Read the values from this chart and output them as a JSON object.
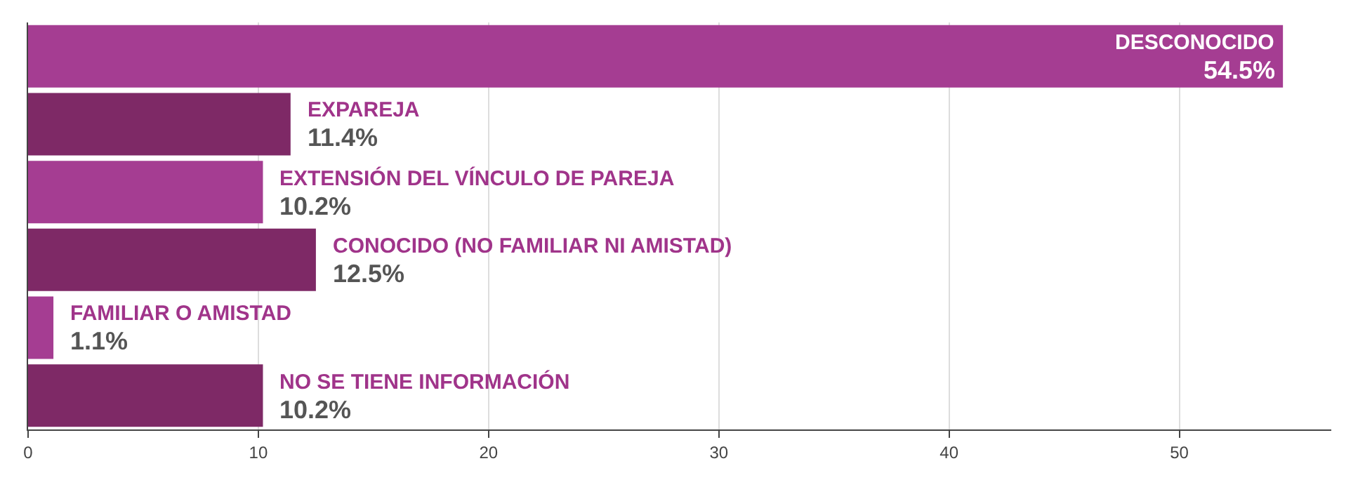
{
  "chart_data": {
    "type": "bar",
    "orientation": "horizontal",
    "categories": [
      "DESCONOCIDO",
      "EXPAREJA",
      "EXTENSIÓN DEL VÍNCULO DE PAREJA",
      "CONOCIDO (NO FAMILIAR NI AMISTAD)",
      "FAMILIAR O AMISTAD",
      "NO SE TIENE INFORMACIÓN"
    ],
    "values": [
      54.5,
      11.4,
      10.2,
      12.5,
      1.1,
      10.2
    ],
    "value_labels": [
      "54.5%",
      "11.4%",
      "10.2%",
      "12.5%",
      "1.1%",
      "10.2%"
    ],
    "colors": [
      "#a53d92",
      "#7e2966",
      "#a53d92",
      "#7e2966",
      "#a53d92",
      "#7e2966"
    ],
    "xlim": [
      0,
      56.6
    ],
    "xticks": [
      0,
      10,
      20,
      30,
      40,
      50
    ],
    "grid": "x",
    "tick_labels": "x"
  }
}
